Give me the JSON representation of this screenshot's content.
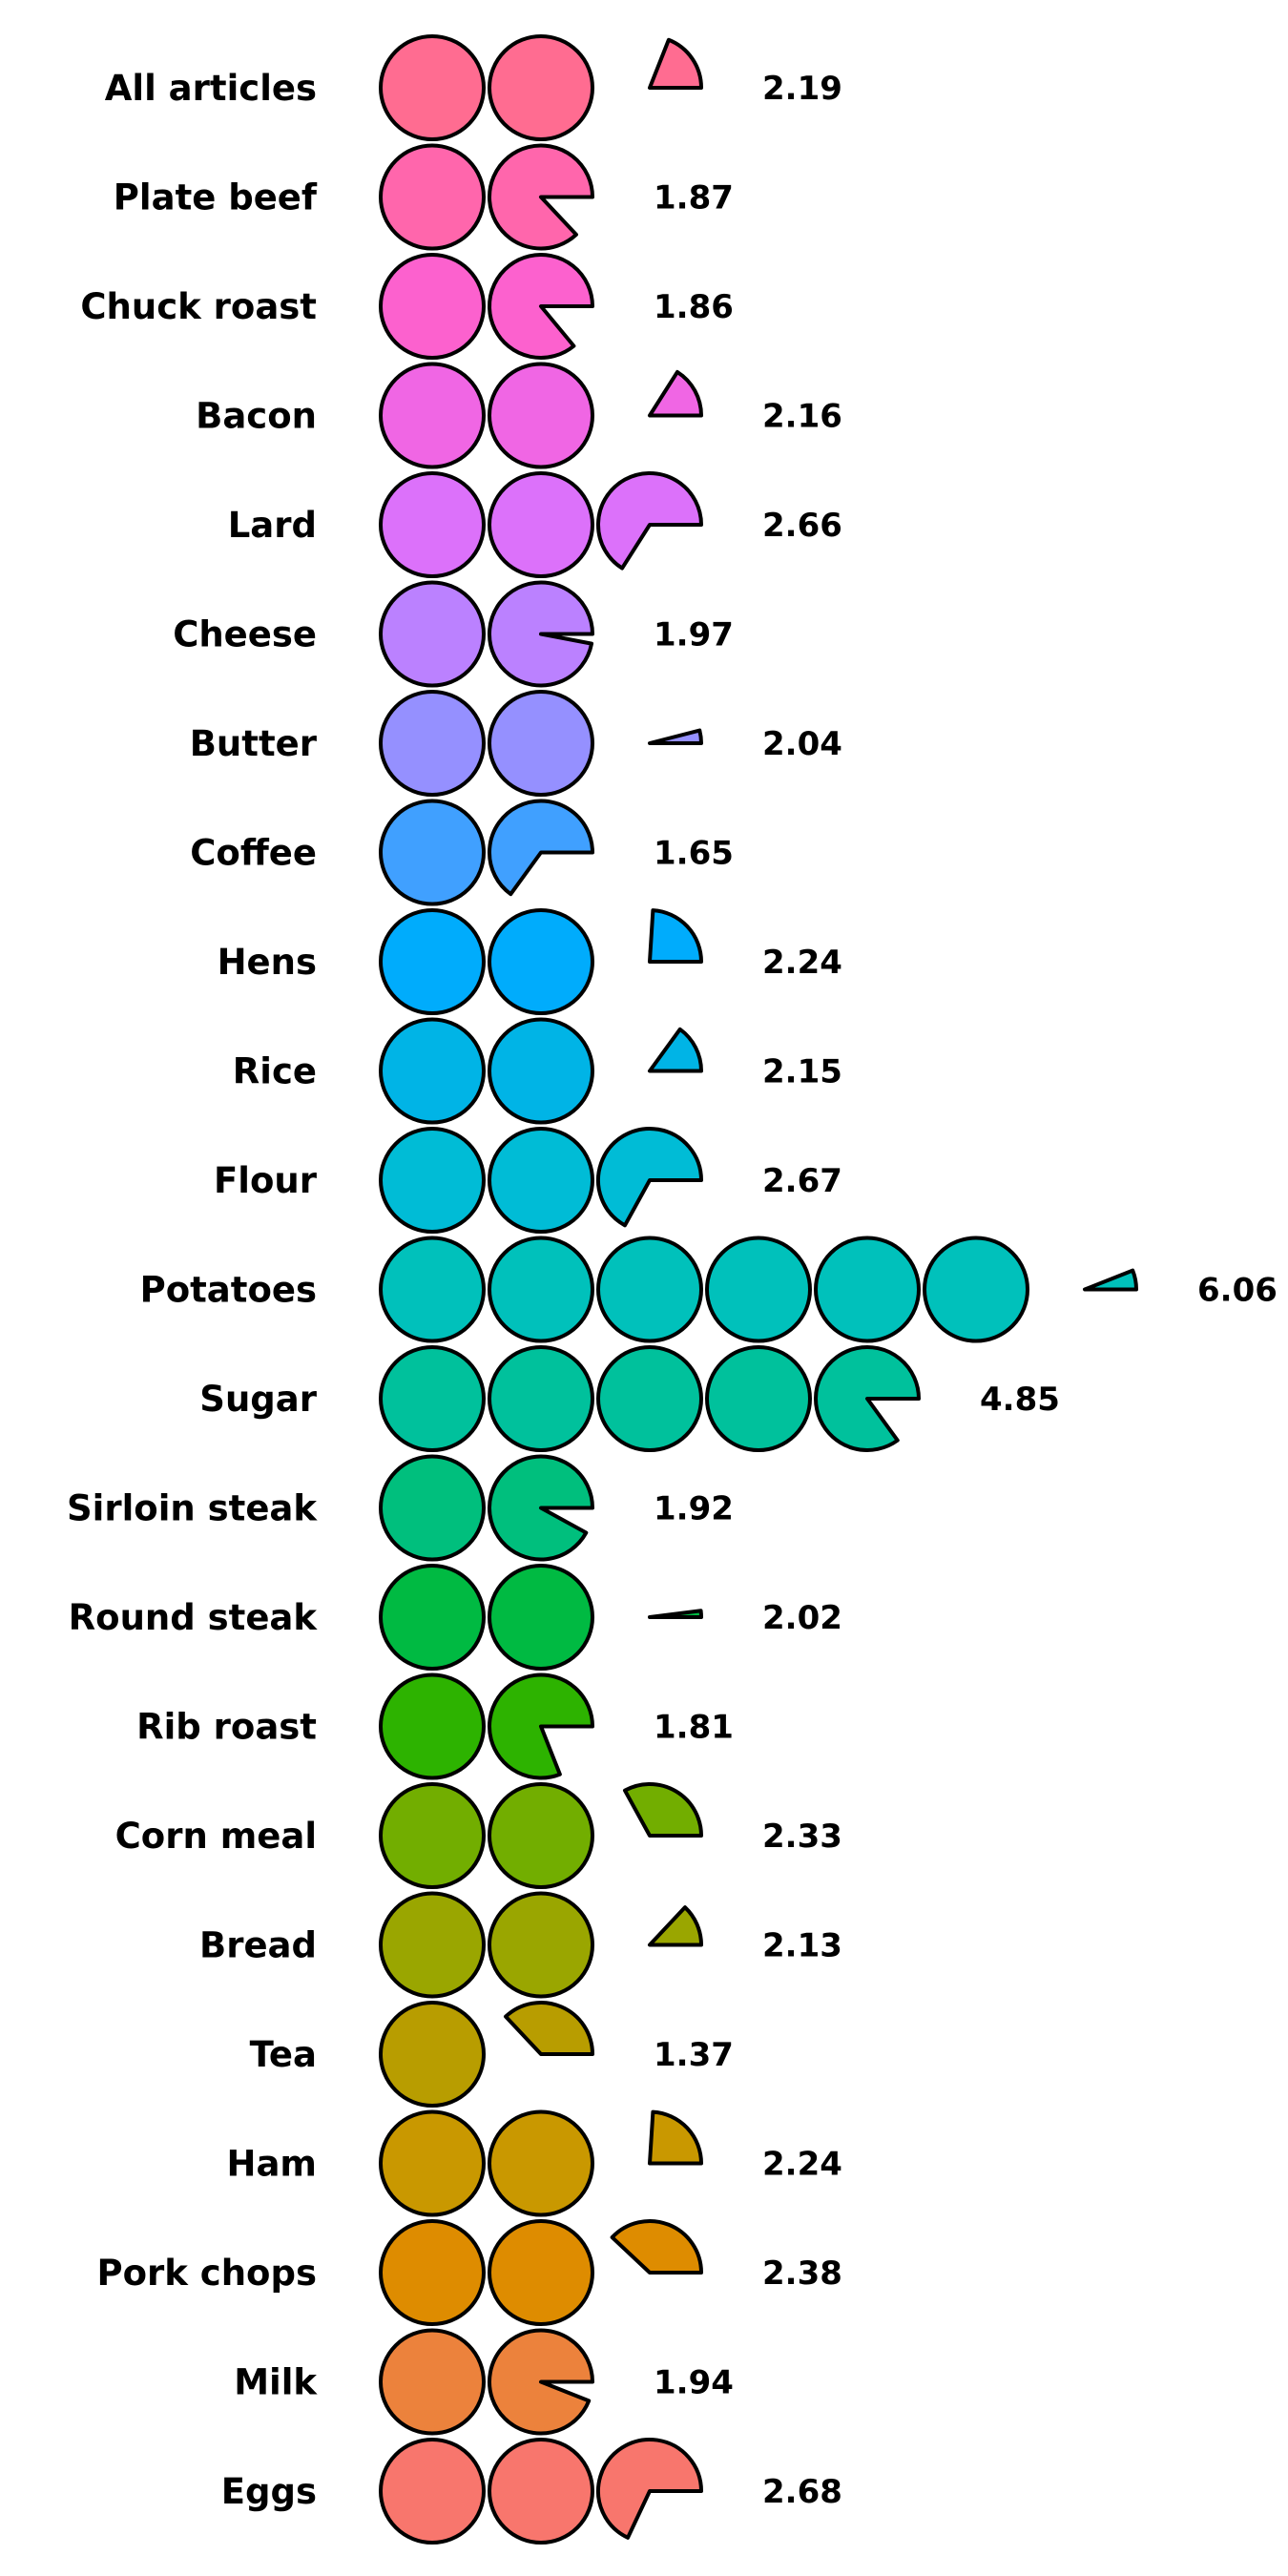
{
  "chart_data": {
    "type": "pictogram",
    "title": "",
    "unit_symbol": "circle",
    "categories": [
      "All articles",
      "Plate beef",
      "Chuck roast",
      "Bacon",
      "Lard",
      "Cheese",
      "Butter",
      "Coffee",
      "Hens",
      "Rice",
      "Flour",
      "Potatoes",
      "Sugar",
      "Sirloin steak",
      "Round steak",
      "Rib roast",
      "Corn meal",
      "Bread",
      "Tea",
      "Ham",
      "Pork chops",
      "Milk",
      "Eggs"
    ],
    "values": [
      2.19,
      1.87,
      1.86,
      2.16,
      2.66,
      1.97,
      2.04,
      1.65,
      2.24,
      2.15,
      2.67,
      6.06,
      4.85,
      1.92,
      2.02,
      1.81,
      2.33,
      2.13,
      1.37,
      2.24,
      2.38,
      1.94,
      2.68
    ],
    "value_labels": [
      "2.19",
      "1.87",
      "1.86",
      "2.16",
      "2.66",
      "1.97",
      "2.04",
      "1.65",
      "2.24",
      "2.15",
      "2.67",
      "6.06",
      "4.85",
      "1.92",
      "2.02",
      "1.81",
      "2.33",
      "2.13",
      "1.37",
      "2.24",
      "2.38",
      "1.94",
      "2.68"
    ],
    "colors": [
      "#FF6C91",
      "#FF66AC",
      "#FC61CE",
      "#F066E4",
      "#DC71FA",
      "#BB81FF",
      "#9590FF",
      "#40A0FF",
      "#00ACFC",
      "#00B4E6",
      "#00BCD6",
      "#00C1BB",
      "#00C19C",
      "#00BF7D",
      "#00BA42",
      "#2DB300",
      "#72AE00",
      "#9AA600",
      "#B89D00",
      "#C99800",
      "#DE8C00",
      "#EC823C",
      "#F8766D"
    ]
  }
}
